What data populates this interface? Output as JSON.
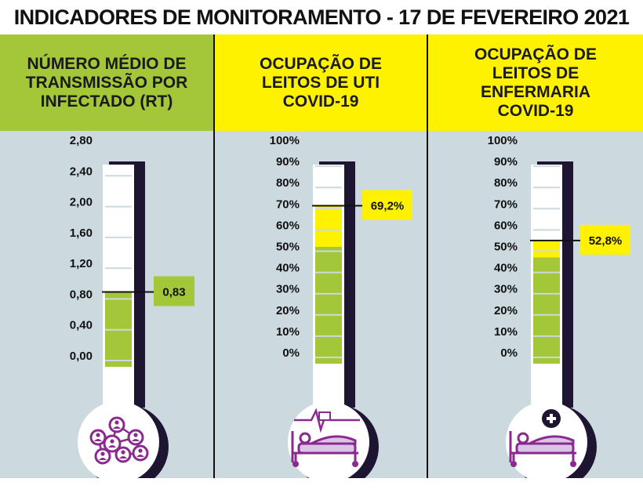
{
  "header": {
    "title": "INDICADORES DE MONITORAMENTO - 17 DE FEVEREIRO 2021"
  },
  "colors": {
    "green": "#a4c639",
    "yellow": "#fff200",
    "purple": "#8a2a8f",
    "background": "#ccd9df",
    "dark": "#1e1533"
  },
  "chart_data": [
    {
      "type": "gauge",
      "title": "NÚMERO MÉDIO DE\nTRANSMISSÃO POR\nINFECTADO (RT)",
      "ticks": [
        "2,80",
        "2,40",
        "2,00",
        "1,60",
        "1,20",
        "0,80",
        "0,40",
        "0,00"
      ],
      "value": 0.83,
      "value_label": "0,83",
      "ylim": [
        0,
        2.8
      ],
      "fill_segments": [
        {
          "from": 0,
          "to": 0.83,
          "color": "green"
        }
      ],
      "icon": "people-network-icon"
    },
    {
      "type": "gauge",
      "title": "OCUPAÇÃO DE\nLEITOS DE UTI\nCOVID-19",
      "ticks": [
        "100%",
        "90%",
        "80%",
        "70%",
        "60%",
        "50%",
        "40%",
        "30%",
        "20%",
        "10%",
        "0%"
      ],
      "value": 69.2,
      "value_label": "69,2%",
      "ylim": [
        0,
        100
      ],
      "fill_segments": [
        {
          "from": 0,
          "to": 55,
          "color": "green"
        },
        {
          "from": 55,
          "to": 69.2,
          "color": "yellow"
        }
      ],
      "icon": "icu-bed-icon"
    },
    {
      "type": "gauge",
      "title": "OCUPAÇÃO DE\nLEITOS DE\nENFERMARIA\nCOVID-19",
      "ticks": [
        "100%",
        "90%",
        "80%",
        "70%",
        "60%",
        "50%",
        "40%",
        "30%",
        "20%",
        "10%",
        "0%"
      ],
      "value": 52.8,
      "value_label": "52,8%",
      "ylim": [
        0,
        100
      ],
      "fill_segments": [
        {
          "from": 0,
          "to": 50,
          "color": "green"
        },
        {
          "from": 50,
          "to": 52.8,
          "color": "yellow"
        }
      ],
      "icon": "ward-bed-icon"
    }
  ]
}
